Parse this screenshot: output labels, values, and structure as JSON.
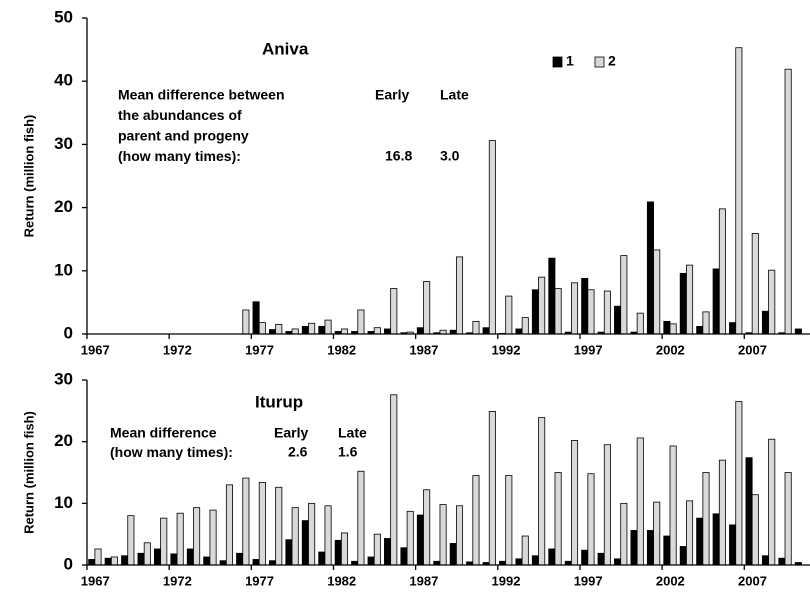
{
  "chart_data": [
    {
      "type": "bar",
      "title": "Aniva",
      "ylabel": "Return  (million fish)",
      "categories": [
        "1967",
        null,
        null,
        null,
        null,
        "1972",
        null,
        null,
        null,
        null,
        "1977",
        null,
        null,
        null,
        null,
        "1982",
        null,
        null,
        null,
        null,
        "1987",
        null,
        null,
        null,
        null,
        "1992",
        null,
        null,
        null,
        null,
        "1997",
        null,
        null,
        null,
        null,
        "2002",
        null,
        null,
        null,
        null,
        "2007",
        null,
        null,
        null
      ],
      "series": [
        {
          "name": "1",
          "color": "#000000",
          "values": [
            0,
            0,
            0,
            0,
            0,
            0,
            0,
            0,
            0,
            0,
            5.1,
            0.7,
            0.4,
            1.2,
            1.2,
            0.4,
            0.4,
            0.4,
            0.8,
            0.2,
            1.0,
            0.2,
            0.6,
            0.2,
            1.0,
            0.1,
            0.8,
            7.0,
            12.0,
            0.3,
            8.8,
            0.3,
            4.4,
            0.3,
            20.9,
            2.0,
            9.6,
            1.2,
            10.3,
            1.8,
            0.2,
            3.6,
            0.2,
            0.8
          ]
        },
        {
          "name": "2",
          "color": "#d9d9d9",
          "values": [
            0,
            0,
            0,
            0,
            0,
            0,
            0,
            0,
            0,
            3.8,
            1.8,
            1.5,
            0.8,
            1.7,
            2.2,
            0.8,
            3.8,
            1.0,
            7.2,
            0.3,
            8.3,
            0.6,
            12.2,
            2.0,
            30.6,
            6.0,
            2.6,
            9.0,
            7.2,
            8.1,
            7.0,
            6.8,
            12.4,
            3.3,
            13.3,
            1.6,
            10.9,
            3.5,
            19.8,
            45.3,
            15.9,
            10.1,
            41.9,
            null
          ]
        }
      ],
      "ylim": [
        0,
        50
      ],
      "yticks": [
        0,
        10,
        20,
        30,
        40,
        50
      ],
      "legend": true,
      "legend_position": "top-right",
      "annotation": {
        "lines": [
          "Mean difference between",
          "the abundances of",
          "parent and progeny",
          "(how many times):"
        ],
        "headers": [
          "Early",
          "Late"
        ],
        "values": [
          "16.8",
          "3.0"
        ]
      }
    },
    {
      "type": "bar",
      "title": "Iturup",
      "ylabel": "Return  (million fish)",
      "categories": [
        "1967",
        null,
        null,
        null,
        null,
        "1972",
        null,
        null,
        null,
        null,
        "1977",
        null,
        null,
        null,
        null,
        "1982",
        null,
        null,
        null,
        null,
        "1987",
        null,
        null,
        null,
        null,
        "1992",
        null,
        null,
        null,
        null,
        "1997",
        null,
        null,
        null,
        null,
        "2002",
        null,
        null,
        null,
        null,
        "2007",
        null,
        null,
        null
      ],
      "series": [
        {
          "color": "#000000",
          "values": [
            0.9,
            1.1,
            1.5,
            1.9,
            2.6,
            1.8,
            2.6,
            1.3,
            0.7,
            1.9,
            0.9,
            0.7,
            4.1,
            7.2,
            2.1,
            4.0,
            0.6,
            1.3,
            4.3,
            2.8,
            8.1,
            0.6,
            3.5,
            0.5,
            0.4,
            0.6,
            1.0,
            1.5,
            2.6,
            0.6,
            2.4,
            1.9,
            1.0,
            5.6,
            5.6,
            4.7,
            3.0,
            7.6,
            8.3,
            6.5,
            17.4,
            1.5,
            1.1,
            0.4
          ]
        },
        {
          "color": "#d9d9d9",
          "values": [
            2.6,
            1.3,
            8.0,
            3.6,
            7.6,
            8.4,
            9.3,
            8.9,
            13.0,
            14.1,
            13.4,
            12.6,
            9.3,
            10.0,
            9.6,
            5.2,
            15.2,
            5.0,
            27.6,
            8.7,
            12.2,
            9.8,
            9.6,
            14.5,
            24.9,
            14.5,
            4.7,
            23.9,
            15.0,
            20.2,
            14.8,
            19.5,
            10.0,
            20.6,
            10.2,
            19.3,
            10.4,
            15.0,
            17.0,
            26.5,
            11.4,
            20.4,
            15.0,
            null
          ]
        }
      ],
      "ylim": [
        0,
        30
      ],
      "yticks": [
        0,
        10,
        20,
        30
      ],
      "legend": false,
      "annotation": {
        "lines": [
          "Mean difference",
          "(how many times):"
        ],
        "headers": [
          "Early",
          "Late"
        ],
        "values": [
          "2.6",
          "1.6"
        ]
      }
    }
  ]
}
